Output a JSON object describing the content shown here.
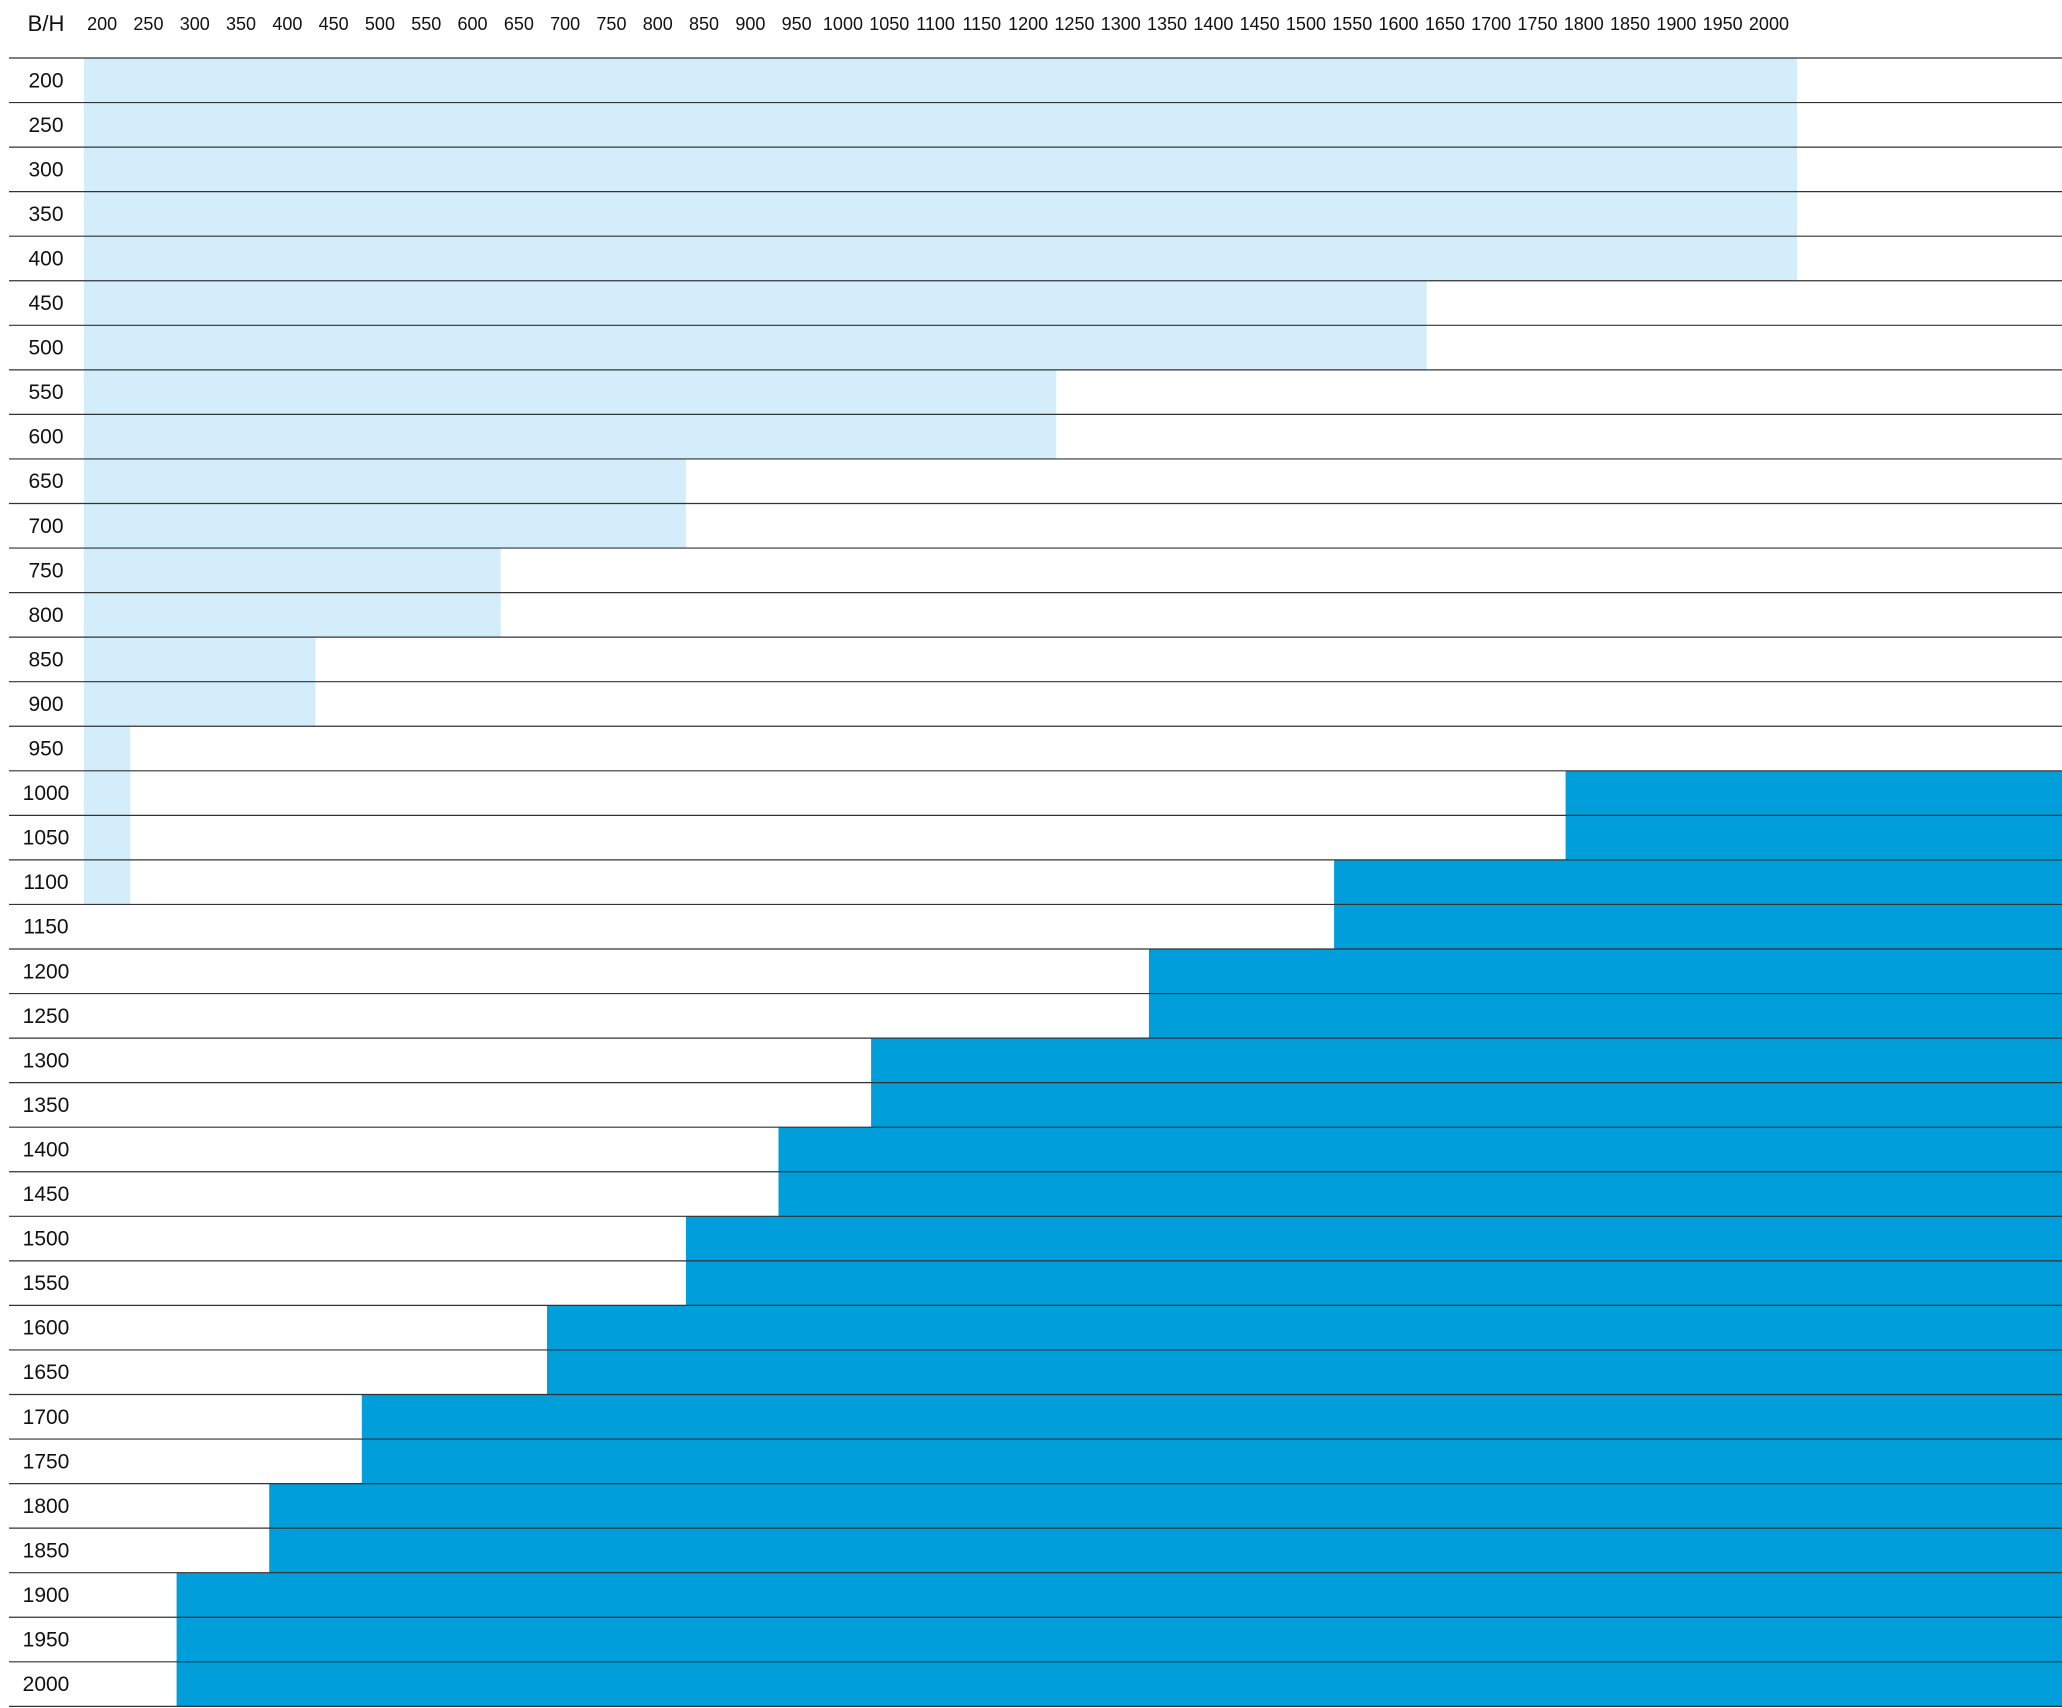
{
  "chart_data": {
    "type": "heatmap",
    "corner_label": "B/H",
    "x_labels": [
      "200",
      "250",
      "300",
      "350",
      "400",
      "450",
      "500",
      "550",
      "600",
      "650",
      "700",
      "750",
      "800",
      "850",
      "900",
      "950",
      "1000",
      "1050",
      "1100",
      "1150",
      "1200",
      "1250",
      "1300",
      "1350",
      "1400",
      "1450",
      "1500",
      "1550",
      "1600",
      "1650",
      "1700",
      "1750",
      "1800",
      "1850",
      "1900",
      "1950",
      "2000"
    ],
    "y_labels": [
      "200",
      "250",
      "300",
      "350",
      "400",
      "450",
      "500",
      "550",
      "600",
      "650",
      "700",
      "750",
      "800",
      "850",
      "900",
      "950",
      "1000",
      "1050",
      "1100",
      "1150",
      "1200",
      "1250",
      "1300",
      "1350",
      "1400",
      "1450",
      "1500",
      "1550",
      "1600",
      "1650",
      "1700",
      "1750",
      "1800",
      "1850",
      "1900",
      "1950",
      "2000"
    ],
    "rows": [
      {
        "y": 200,
        "light_through_x": 2000,
        "dark_from_x": null
      },
      {
        "y": 250,
        "light_through_x": 2000,
        "dark_from_x": null
      },
      {
        "y": 300,
        "light_through_x": 2000,
        "dark_from_x": null
      },
      {
        "y": 350,
        "light_through_x": 2000,
        "dark_from_x": null
      },
      {
        "y": 400,
        "light_through_x": 2000,
        "dark_from_x": null
      },
      {
        "y": 450,
        "light_through_x": 1600,
        "dark_from_x": null
      },
      {
        "y": 500,
        "light_through_x": 1600,
        "dark_from_x": null
      },
      {
        "y": 550,
        "light_through_x": 1200,
        "dark_from_x": null
      },
      {
        "y": 600,
        "light_through_x": 1200,
        "dark_from_x": null
      },
      {
        "y": 650,
        "light_through_x": 800,
        "dark_from_x": null
      },
      {
        "y": 700,
        "light_through_x": 800,
        "dark_from_x": null
      },
      {
        "y": 750,
        "light_through_x": 600,
        "dark_from_x": null
      },
      {
        "y": 800,
        "light_through_x": 600,
        "dark_from_x": null
      },
      {
        "y": 850,
        "light_through_x": 400,
        "dark_from_x": null
      },
      {
        "y": 900,
        "light_through_x": 400,
        "dark_from_x": null
      },
      {
        "y": 950,
        "light_through_x": 200,
        "dark_from_x": null
      },
      {
        "y": 1000,
        "light_through_x": 200,
        "dark_from_x": 1800
      },
      {
        "y": 1050,
        "light_through_x": 200,
        "dark_from_x": 1800
      },
      {
        "y": 1100,
        "light_through_x": 200,
        "dark_from_x": 1550
      },
      {
        "y": 1150,
        "light_through_x": null,
        "dark_from_x": 1550
      },
      {
        "y": 1200,
        "light_through_x": null,
        "dark_from_x": 1350
      },
      {
        "y": 1250,
        "light_through_x": null,
        "dark_from_x": 1350
      },
      {
        "y": 1300,
        "light_through_x": null,
        "dark_from_x": 1050
      },
      {
        "y": 1350,
        "light_through_x": null,
        "dark_from_x": 1050
      },
      {
        "y": 1400,
        "light_through_x": null,
        "dark_from_x": 950
      },
      {
        "y": 1450,
        "light_through_x": null,
        "dark_from_x": 950
      },
      {
        "y": 1500,
        "light_through_x": null,
        "dark_from_x": 850
      },
      {
        "y": 1550,
        "light_through_x": null,
        "dark_from_x": 850
      },
      {
        "y": 1600,
        "light_through_x": null,
        "dark_from_x": 700
      },
      {
        "y": 1650,
        "light_through_x": null,
        "dark_from_x": 700
      },
      {
        "y": 1700,
        "light_through_x": null,
        "dark_from_x": 500
      },
      {
        "y": 1750,
        "light_through_x": null,
        "dark_from_x": 500
      },
      {
        "y": 1800,
        "light_through_x": null,
        "dark_from_x": 400
      },
      {
        "y": 1850,
        "light_through_x": null,
        "dark_from_x": 400
      },
      {
        "y": 1900,
        "light_through_x": null,
        "dark_from_x": 300
      },
      {
        "y": 1950,
        "light_through_x": null,
        "dark_from_x": 300
      },
      {
        "y": 2000,
        "light_through_x": null,
        "dark_from_x": 300
      }
    ],
    "colors": {
      "light_region": "#d3eefa",
      "dark_region": "#009edb",
      "row_line": "#333333",
      "text": "#111111"
    },
    "grid": "horizontal row lines only",
    "legend": "none"
  }
}
